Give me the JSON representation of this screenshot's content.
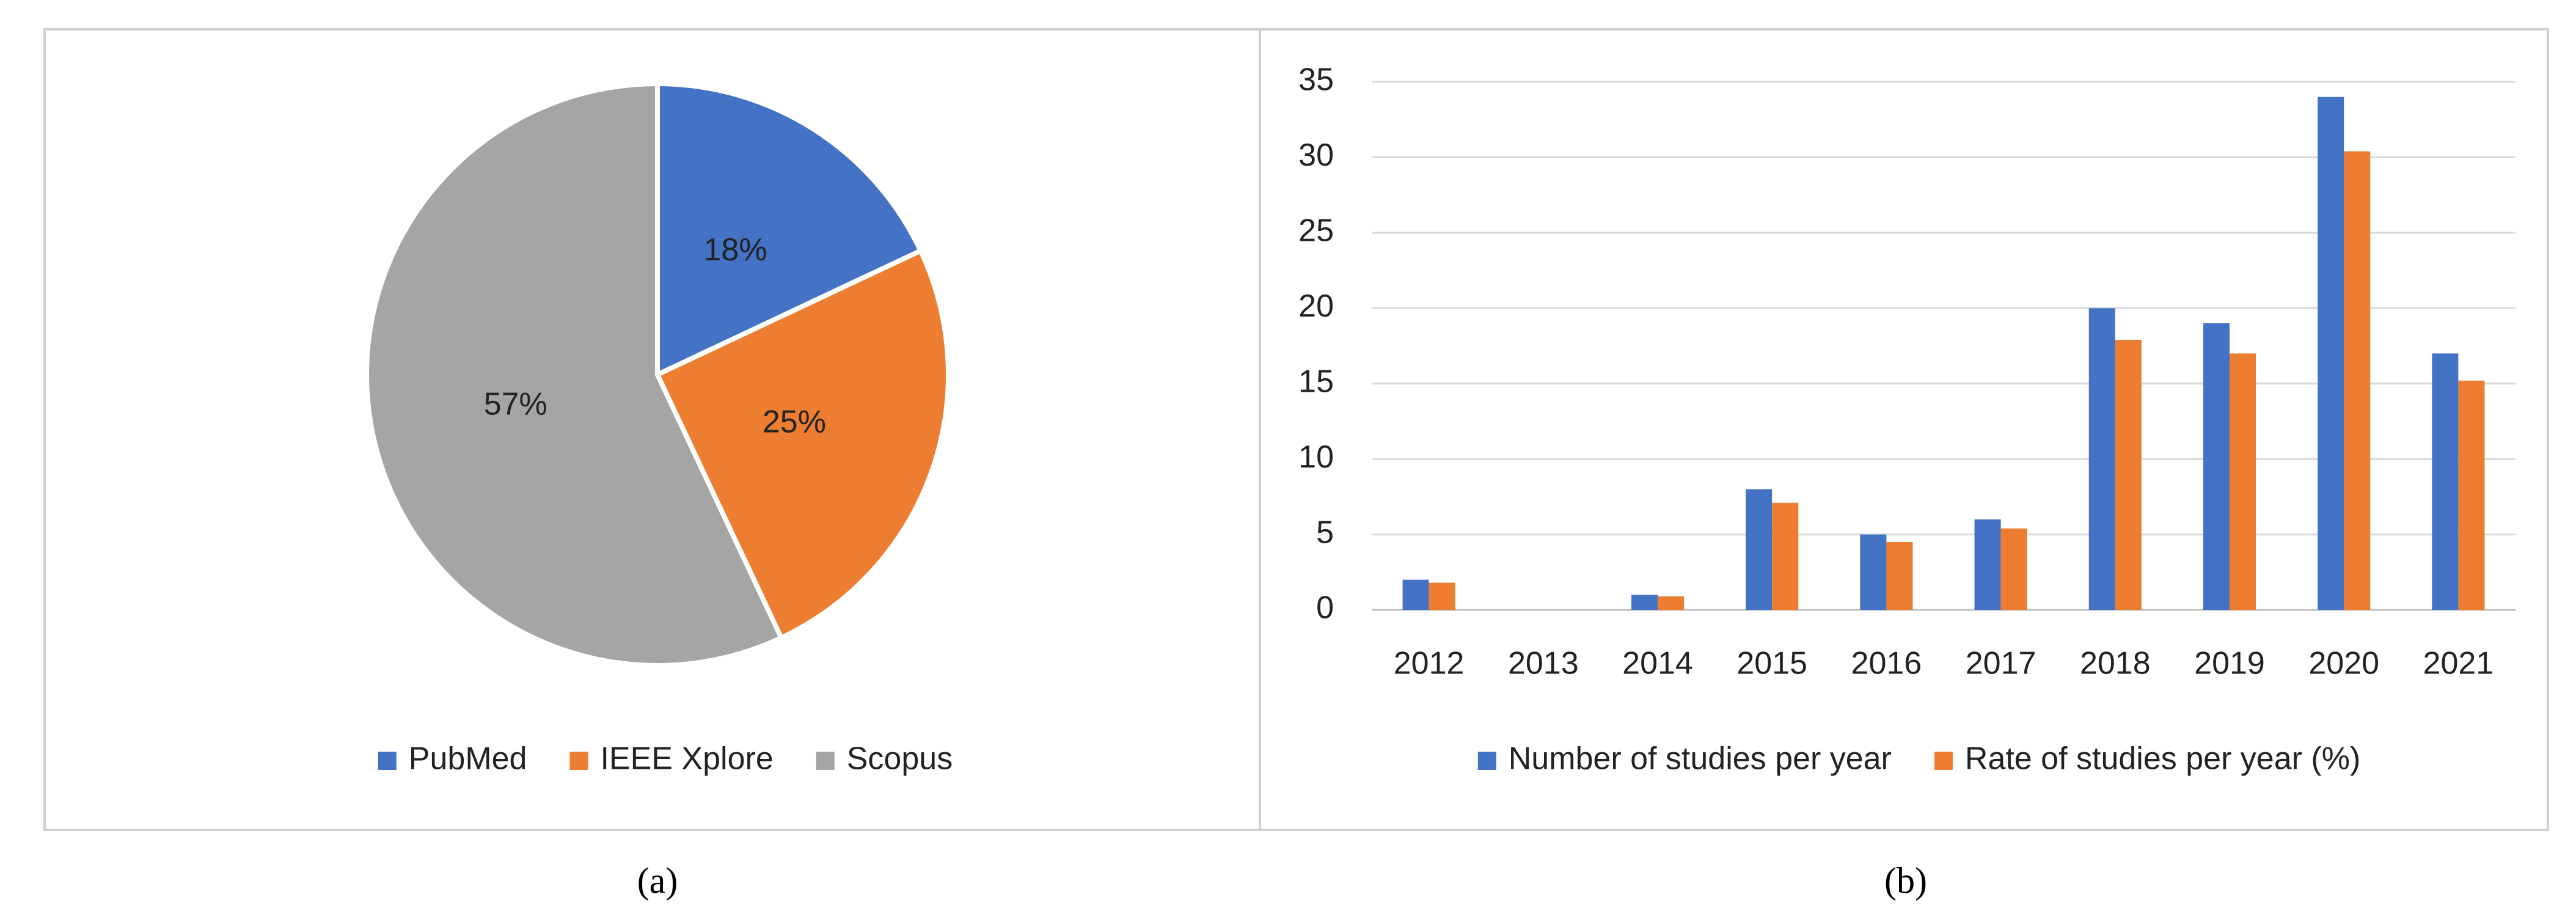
{
  "chart_data": [
    {
      "type": "pie",
      "caption": "(a)",
      "categories": [
        "PubMed",
        "IEEE Xplore",
        "Scopus"
      ],
      "values": [
        18,
        25,
        57
      ],
      "value_labels": [
        "18%",
        "25%",
        "57%"
      ],
      "colors": [
        "#4472c4",
        "#ed7d31",
        "#a5a5a5"
      ],
      "legend": "bottom"
    },
    {
      "type": "bar",
      "caption": "(b)",
      "categories": [
        "2012",
        "2013",
        "2014",
        "2015",
        "2016",
        "2017",
        "2018",
        "2019",
        "2020",
        "2021"
      ],
      "series": [
        {
          "name": "Number of studies per year",
          "color": "#4472c4",
          "values": [
            2,
            0,
            1,
            8,
            5,
            6,
            20,
            19,
            34,
            17
          ]
        },
        {
          "name": "Rate of studies per year (%)",
          "color": "#ed7d31",
          "values": [
            1.8,
            0,
            0.9,
            7.1,
            4.5,
            5.4,
            17.9,
            17.0,
            30.4,
            15.2
          ]
        }
      ],
      "ylim": [
        0,
        35
      ],
      "yticks": [
        0,
        5,
        10,
        15,
        20,
        25,
        30,
        35
      ],
      "grid": true,
      "legend": "bottom"
    }
  ]
}
